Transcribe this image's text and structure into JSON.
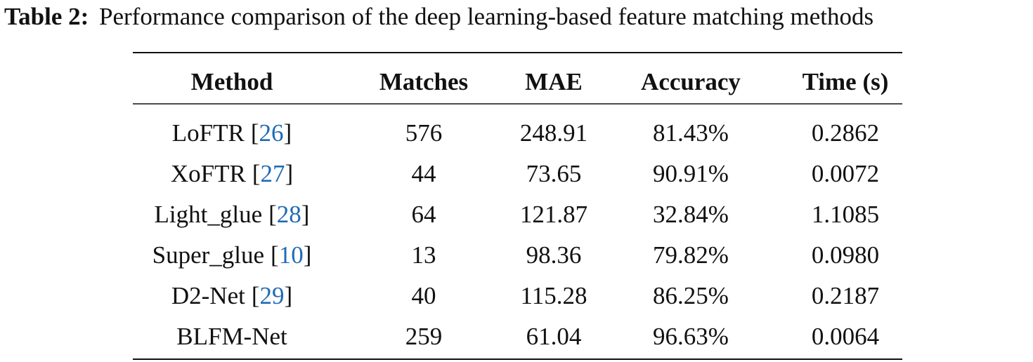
{
  "caption": {
    "label": "Table 2:",
    "text": "Performance comparison of the deep learning-based feature matching methods"
  },
  "table": {
    "header": [
      "Method",
      "Matches",
      "MAE",
      "Accuracy",
      "Time (s)"
    ],
    "rows": [
      [
        {
          "name": "LoFTR",
          "open": "[",
          "ref": "26",
          "close": "]"
        },
        "576",
        "248.91",
        "81.43%",
        "0.2862"
      ],
      [
        {
          "name": "XoFTR",
          "open": "[",
          "ref": "27",
          "close": "]"
        },
        "44",
        "73.65",
        "90.91%",
        "0.0072"
      ],
      [
        {
          "name": "Light_glue",
          "open": "[",
          "ref": "28",
          "close": "]"
        },
        "64",
        "121.87",
        "32.84%",
        "1.1085"
      ],
      [
        {
          "name": "Super_glue",
          "open": "[",
          "ref": "10",
          "close": "]"
        },
        "13",
        "98.36",
        "79.82%",
        "0.0980"
      ],
      [
        {
          "name": "D2-Net",
          "open": "[",
          "ref": "29",
          "close": "]"
        },
        "40",
        "115.28",
        "86.25%",
        "0.2187"
      ],
      [
        {
          "name": "BLFM-Net"
        },
        "259",
        "61.04",
        "96.63%",
        "0.0064"
      ]
    ]
  }
}
